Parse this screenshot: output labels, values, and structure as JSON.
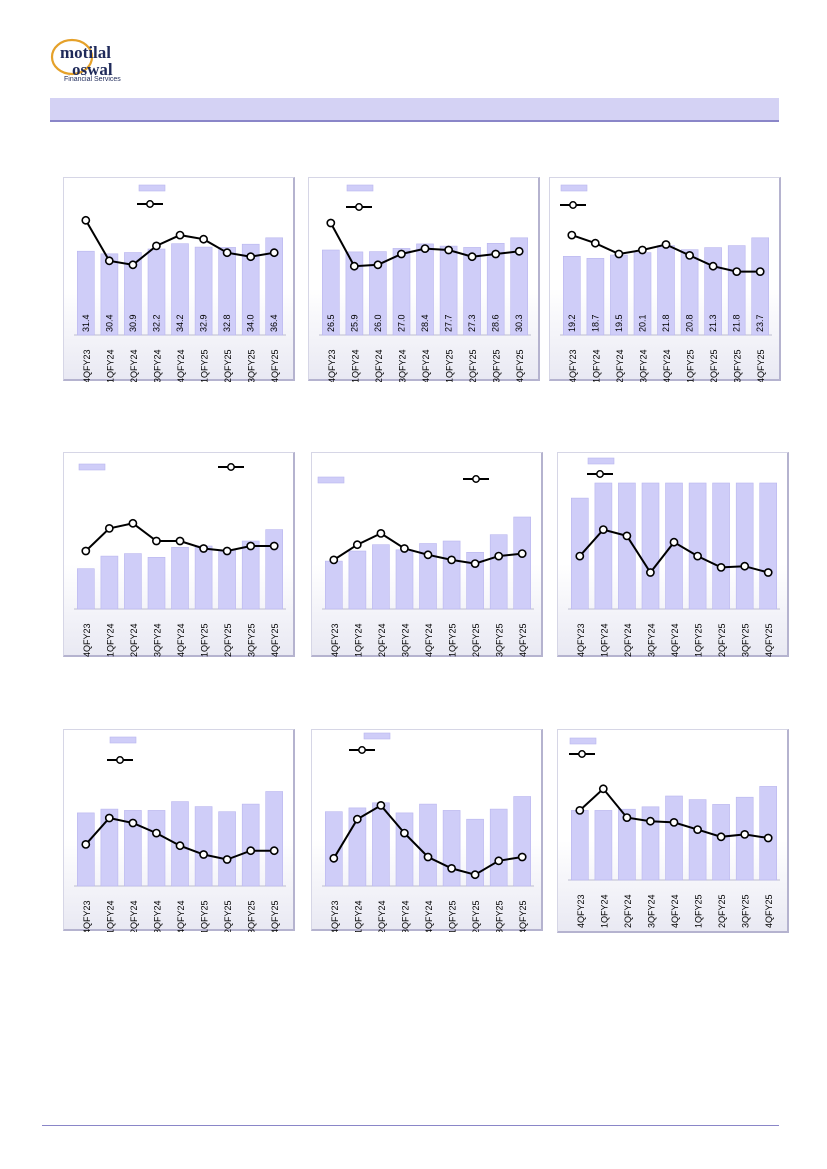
{
  "header": {
    "logo_primary": "motilal oswal",
    "logo_secondary": "Financial Services",
    "title_band": ""
  },
  "colors": {
    "bar": "#cfcdf8",
    "bar_stroke": "#b9b6ee",
    "line": "#000000",
    "marker_fill": "#ffffff",
    "band": "#d4d2f4"
  },
  "chart_data": [
    {
      "type": "bar",
      "categories": [
        "4QFY23",
        "1QFY24",
        "2QFY24",
        "3QFY24",
        "4QFY24",
        "1QFY25",
        "2QFY25",
        "3QFY25",
        "4QFY25"
      ],
      "series": [
        {
          "values": [
            31.4,
            30.4,
            30.9,
            32.2,
            34.2,
            32.9,
            32.8,
            34.0,
            36.4
          ],
          "labels": [
            "31.4",
            "30.4",
            "30.9",
            "32.2",
            "34.2",
            "32.9",
            "32.8",
            "34.0",
            "36.4"
          ]
        },
        {
          "type": "line",
          "values": [
            0.85,
            0.55,
            0.52,
            0.66,
            0.74,
            0.71,
            0.61,
            0.58,
            0.61
          ]
        }
      ]
    },
    {
      "type": "bar",
      "categories": [
        "4QFY23",
        "1QFY24",
        "2QFY24",
        "3QFY24",
        "4QFY24",
        "1QFY25",
        "2QFY25",
        "3QFY25",
        "4QFY25"
      ],
      "series": [
        {
          "values": [
            26.5,
            25.9,
            26.0,
            27.0,
            28.4,
            27.7,
            27.3,
            28.6,
            30.3
          ],
          "labels": [
            "26.5",
            "25.9",
            "26.0",
            "27.0",
            "28.4",
            "27.7",
            "27.3",
            "28.6",
            "30.3"
          ]
        },
        {
          "type": "line",
          "values": [
            0.83,
            0.51,
            0.52,
            0.6,
            0.64,
            0.63,
            0.58,
            0.6,
            0.62
          ]
        }
      ]
    },
    {
      "type": "bar",
      "categories": [
        "4QFY23",
        "1QFY24",
        "2QFY24",
        "3QFY24",
        "4QFY24",
        "1QFY25",
        "2QFY25",
        "3QFY25",
        "4QFY25"
      ],
      "series": [
        {
          "values": [
            19.2,
            18.7,
            19.5,
            20.1,
            21.8,
            20.8,
            21.3,
            21.8,
            23.7
          ],
          "labels": [
            "19.2",
            "18.7",
            "19.5",
            "20.1",
            "21.8",
            "20.8",
            "21.3",
            "21.8",
            "23.7"
          ]
        },
        {
          "type": "line",
          "values": [
            0.74,
            0.68,
            0.6,
            0.63,
            0.67,
            0.59,
            0.51,
            0.47,
            0.47
          ]
        }
      ]
    },
    {
      "type": "bar",
      "categories": [
        "4QFY23",
        "1QFY24",
        "2QFY24",
        "3QFY24",
        "4QFY24",
        "1QFY25",
        "2QFY25",
        "3QFY25",
        "4QFY25"
      ],
      "series": [
        {
          "values": [
            0.32,
            0.42,
            0.44,
            0.41,
            0.49,
            0.5,
            0.47,
            0.54,
            0.63
          ]
        },
        {
          "type": "line",
          "values": [
            0.46,
            0.64,
            0.68,
            0.54,
            0.54,
            0.48,
            0.46,
            0.5,
            0.5
          ]
        }
      ]
    },
    {
      "type": "bar",
      "categories": [
        "4QFY23",
        "1QFY24",
        "2QFY24",
        "3QFY24",
        "4QFY24",
        "1QFY25",
        "2QFY25",
        "3QFY25",
        "4QFY25"
      ],
      "series": [
        {
          "values": [
            0.38,
            0.46,
            0.51,
            0.47,
            0.52,
            0.54,
            0.45,
            0.59,
            0.73
          ]
        },
        {
          "type": "line",
          "values": [
            0.39,
            0.51,
            0.6,
            0.48,
            0.43,
            0.39,
            0.36,
            0.42,
            0.44
          ]
        }
      ]
    },
    {
      "type": "bar",
      "categories": [
        "4QFY23",
        "1QFY24",
        "2QFY24",
        "3QFY24",
        "4QFY24",
        "1QFY25",
        "2QFY25",
        "3QFY25",
        "4QFY25"
      ],
      "series": [
        {
          "values": [
            0.88,
            1.0,
            1.0,
            1.0,
            1.0,
            1.0,
            1.0,
            1.0,
            1.0
          ]
        },
        {
          "type": "line",
          "values": [
            0.42,
            0.63,
            0.58,
            0.29,
            0.53,
            0.42,
            0.33,
            0.34,
            0.29
          ]
        }
      ]
    },
    {
      "type": "bar",
      "categories": [
        "4QFY23",
        "1QFY24",
        "2QFY24",
        "3QFY24",
        "4QFY24",
        "1QFY25",
        "2QFY25",
        "3QFY25",
        "4QFY25"
      ],
      "series": [
        {
          "values": [
            0.58,
            0.61,
            0.6,
            0.6,
            0.67,
            0.63,
            0.59,
            0.65,
            0.75
          ]
        },
        {
          "type": "line",
          "values": [
            0.33,
            0.54,
            0.5,
            0.42,
            0.32,
            0.25,
            0.21,
            0.28,
            0.28
          ]
        }
      ]
    },
    {
      "type": "bar",
      "categories": [
        "4QFY23",
        "1QFY24",
        "2QFY24",
        "3QFY24",
        "4QFY24",
        "1QFY25",
        "2QFY25",
        "3QFY25",
        "4QFY25"
      ],
      "series": [
        {
          "values": [
            0.59,
            0.62,
            0.66,
            0.58,
            0.65,
            0.6,
            0.53,
            0.61,
            0.71
          ]
        },
        {
          "type": "line",
          "values": [
            0.22,
            0.53,
            0.64,
            0.42,
            0.23,
            0.14,
            0.09,
            0.2,
            0.23
          ]
        }
      ]
    },
    {
      "type": "bar",
      "categories": [
        "4QFY23",
        "1QFY24",
        "2QFY24",
        "3QFY24",
        "4QFY24",
        "1QFY25",
        "2QFY25",
        "3QFY25",
        "4QFY25"
      ],
      "series": [
        {
          "values": [
            0.58,
            0.58,
            0.59,
            0.61,
            0.7,
            0.67,
            0.63,
            0.69,
            0.78
          ]
        },
        {
          "type": "line",
          "values": [
            0.58,
            0.76,
            0.52,
            0.49,
            0.48,
            0.42,
            0.36,
            0.38,
            0.35
          ]
        }
      ]
    }
  ]
}
